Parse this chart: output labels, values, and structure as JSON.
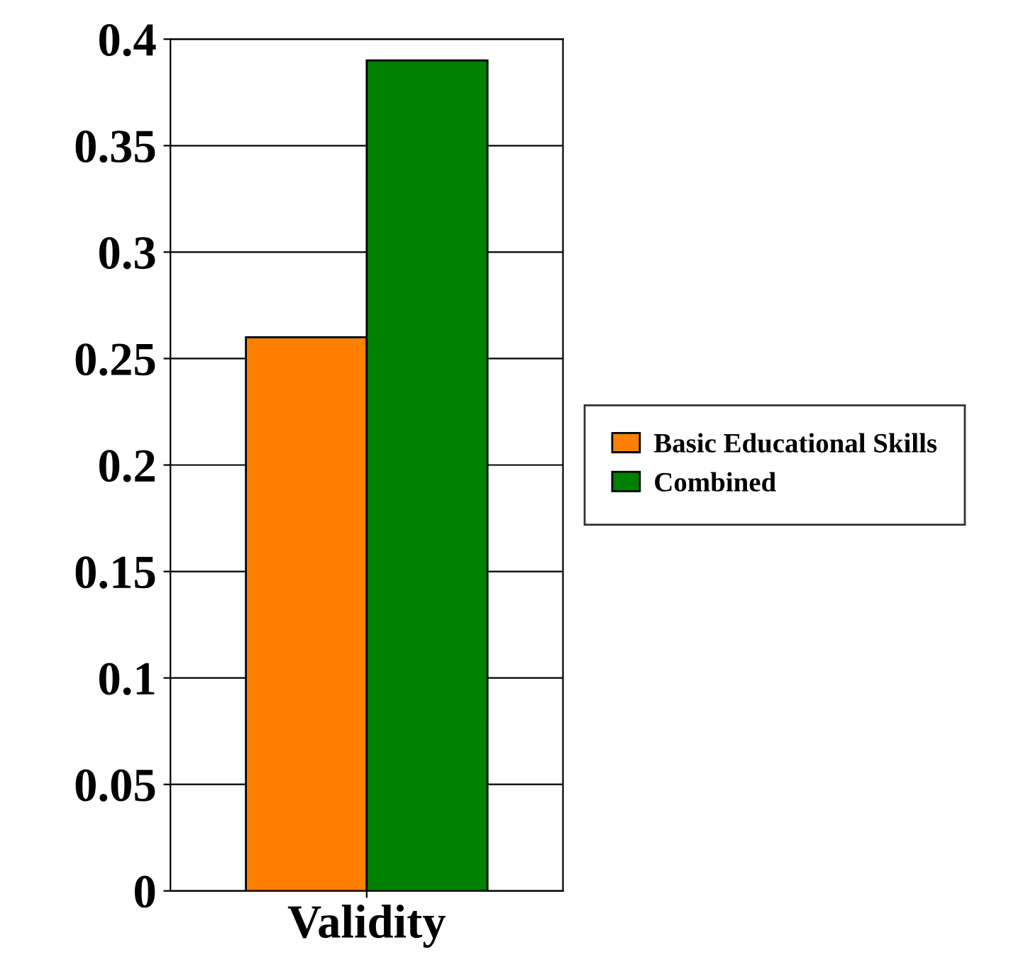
{
  "chart_data": {
    "type": "bar",
    "categories": [
      "Validity"
    ],
    "series": [
      {
        "name": "Basic Educational Skills",
        "color": "#ff8000",
        "values": [
          0.26
        ]
      },
      {
        "name": "Combined",
        "color": "#008000",
        "values": [
          0.39
        ]
      }
    ],
    "ylim": [
      0,
      0.4
    ],
    "yticks": [
      0,
      0.05,
      0.1,
      0.15,
      0.2,
      0.25,
      0.3,
      0.35,
      0.4
    ],
    "grid": "y",
    "legend": "right"
  }
}
